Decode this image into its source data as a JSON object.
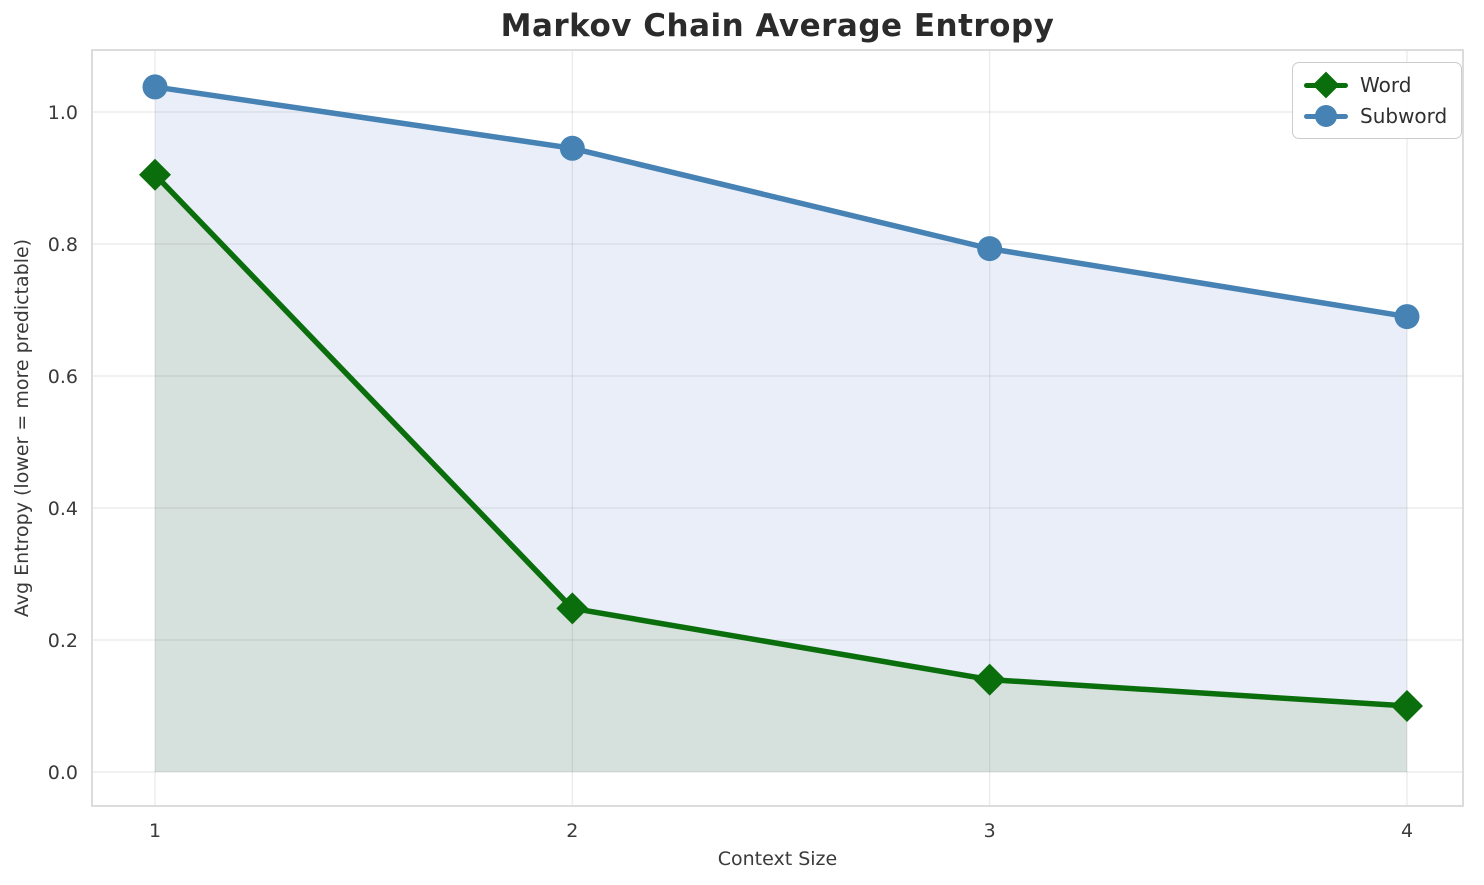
{
  "figure": {
    "title": "Markov Chain Average Entropy"
  },
  "chart_data": {
    "type": "line",
    "title": "Markov Chain Average Entropy",
    "xlabel": "Context Size",
    "ylabel": "Avg Entropy (lower = more predictable)",
    "x": [
      1,
      2,
      3,
      4
    ],
    "series": [
      {
        "name": "Word",
        "values": [
          0.905,
          0.248,
          0.14,
          0.1
        ],
        "color": "#0b6e0c",
        "marker": "diamond",
        "area_fill_color": "#d6e1dd"
      },
      {
        "name": "Subword",
        "values": [
          1.038,
          0.945,
          0.793,
          0.69
        ],
        "color": "#4682b4",
        "marker": "circle",
        "area_fill_color": "#eaeef9"
      }
    ],
    "xticks": [
      "1",
      "2",
      "3",
      "4"
    ],
    "yticks": [
      0.0,
      0.2,
      0.4,
      0.6,
      0.8,
      1.0
    ],
    "xlim": [
      0.85,
      4.13
    ],
    "ylim": [
      -0.05,
      1.09
    ],
    "grid": true,
    "area_fill": true,
    "legend_position": "upper right",
    "colors": {
      "grid": "#e8e8e8",
      "spine": "#d4d4d4",
      "tick_label": "#3a3a3a",
      "title": "#2b2b2b"
    }
  }
}
